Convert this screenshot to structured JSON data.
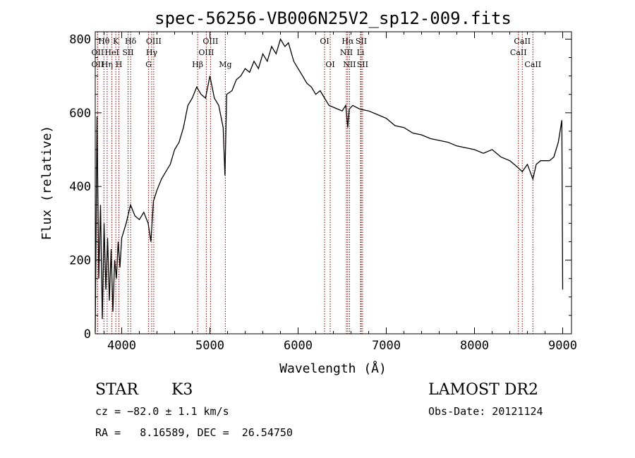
{
  "chart_data": {
    "type": "line",
    "title": "spec-56256-VB006N25V2_sp12-009.fits",
    "xlabel": "Wavelength (Å)",
    "ylabel": "Flux (relative)",
    "xlim": [
      3700,
      9100
    ],
    "ylim": [
      0,
      820
    ],
    "xticks": [
      4000,
      5000,
      6000,
      7000,
      8000,
      9000
    ],
    "yticks": [
      0,
      200,
      400,
      600,
      800
    ],
    "line_color": "#000000",
    "marker_color": "#8b0000",
    "series": [
      {
        "x": [
          3700,
          3720,
          3740,
          3760,
          3780,
          3800,
          3820,
          3840,
          3860,
          3880,
          3900,
          3920,
          3940,
          3960,
          3980,
          4000,
          4050,
          4100,
          4150,
          4200,
          4250,
          4300,
          4330,
          4360,
          4400,
          4450,
          4500,
          4550,
          4600,
          4650,
          4700,
          4750,
          4800,
          4850,
          4900,
          4950,
          5000,
          5050,
          5100,
          5150,
          5170,
          5190,
          5250,
          5300,
          5350,
          5400,
          5450,
          5500,
          5550,
          5600,
          5650,
          5700,
          5750,
          5800,
          5850,
          5890,
          5950,
          6000,
          6050,
          6100,
          6150,
          6200,
          6250,
          6300,
          6350,
          6400,
          6450,
          6500,
          6540,
          6563,
          6580,
          6620,
          6700,
          6800,
          6900,
          7000,
          7100,
          7200,
          7300,
          7400,
          7500,
          7600,
          7700,
          7800,
          7900,
          8000,
          8100,
          8200,
          8300,
          8400,
          8450,
          8498,
          8542,
          8600,
          8662,
          8700,
          8750,
          8800,
          8850,
          8900,
          8950,
          8990,
          9000
        ],
        "y": [
          5,
          590,
          150,
          350,
          40,
          300,
          120,
          260,
          90,
          230,
          60,
          200,
          150,
          250,
          180,
          260,
          300,
          350,
          320,
          310,
          330,
          300,
          250,
          360,
          390,
          420,
          440,
          460,
          500,
          520,
          560,
          620,
          640,
          670,
          650,
          640,
          700,
          640,
          620,
          560,
          430,
          650,
          660,
          690,
          700,
          720,
          710,
          740,
          720,
          760,
          740,
          780,
          760,
          800,
          780,
          790,
          740,
          720,
          700,
          680,
          670,
          650,
          660,
          640,
          620,
          615,
          610,
          605,
          620,
          560,
          610,
          620,
          610,
          605,
          595,
          585,
          565,
          560,
          545,
          540,
          530,
          525,
          520,
          510,
          505,
          500,
          490,
          500,
          480,
          470,
          460,
          450,
          440,
          460,
          420,
          460,
          470,
          470,
          470,
          480,
          520,
          580,
          120
        ]
      }
    ],
    "lines": [
      {
        "label": "Hθ",
        "x": 3798,
        "row": 0
      },
      {
        "label": "K",
        "x": 3933,
        "row": 0
      },
      {
        "label": "Hδ",
        "x": 4101,
        "row": 0
      },
      {
        "label": "OIII",
        "x": 4363,
        "row": 0
      },
      {
        "label": "OIII",
        "x": 5007,
        "row": 0
      },
      {
        "label": "OI",
        "x": 6300,
        "row": 0
      },
      {
        "label": "Hα",
        "x": 6563,
        "row": 0
      },
      {
        "label": "SII",
        "x": 6716,
        "row": 0
      },
      {
        "label": "CaII",
        "x": 8542,
        "row": 0
      },
      {
        "label": "OII",
        "x": 3727,
        "row": 1
      },
      {
        "label": "HeI",
        "x": 3889,
        "row": 1
      },
      {
        "label": "SII",
        "x": 4072,
        "row": 1
      },
      {
        "label": "Hγ",
        "x": 4340,
        "row": 1
      },
      {
        "label": "OIII",
        "x": 4959,
        "row": 1
      },
      {
        "label": "NII",
        "x": 6548,
        "row": 1
      },
      {
        "label": "Li",
        "x": 6708,
        "row": 1
      },
      {
        "label": "CaII",
        "x": 8498,
        "row": 1
      },
      {
        "label": "OII",
        "x": 3727,
        "row": 2
      },
      {
        "label": "Hη",
        "x": 3835,
        "row": 2
      },
      {
        "label": "H",
        "x": 3968,
        "row": 2
      },
      {
        "label": "G",
        "x": 4305,
        "row": 2
      },
      {
        "label": "Hβ",
        "x": 4861,
        "row": 2
      },
      {
        "label": "Mg",
        "x": 5175,
        "row": 2
      },
      {
        "label": "OI",
        "x": 6364,
        "row": 2
      },
      {
        "label": "NII",
        "x": 6583,
        "row": 2
      },
      {
        "label": "SII",
        "x": 6731,
        "row": 2
      },
      {
        "label": "CaII",
        "x": 8662,
        "row": 2
      }
    ]
  },
  "info": {
    "class_label": "STAR",
    "subclass": "K3",
    "survey": "LAMOST DR2",
    "cz": "cz = −82.0 ± 1.1 km/s",
    "obs_date": "Obs-Date: 20121124",
    "coords": "RA =   8.16589, DEC =  26.54750"
  }
}
